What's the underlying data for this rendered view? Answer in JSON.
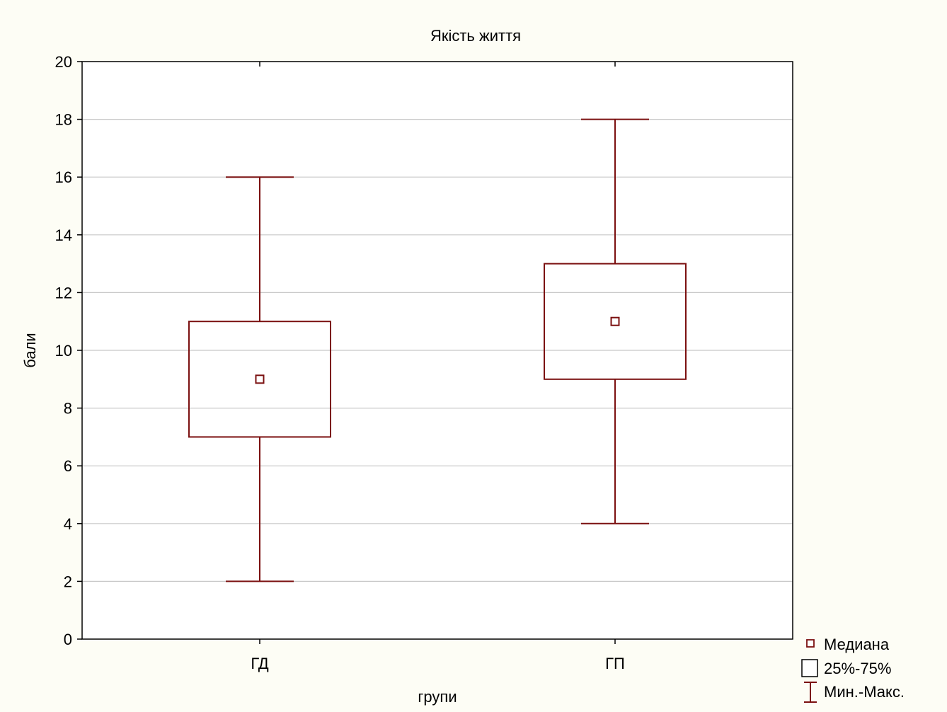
{
  "chart_data": {
    "type": "boxplot",
    "title": "Якість життя",
    "xlabel": "групи",
    "ylabel": "бали",
    "ylim": [
      0,
      20
    ],
    "yticks": [
      "0",
      "2",
      "4",
      "6",
      "8",
      "10",
      "12",
      "14",
      "16",
      "18",
      "20"
    ],
    "grid": true,
    "categories": [
      "ГД",
      "ГП"
    ],
    "boxes": [
      {
        "category": "ГД",
        "min": 2,
        "q1": 7,
        "median": 9,
        "q3": 11,
        "max": 16
      },
      {
        "category": "ГП",
        "min": 4,
        "q1": 9,
        "median": 11,
        "q3": 13,
        "max": 18
      }
    ],
    "legend": {
      "placement": "bottom-right",
      "items": [
        "Медиана",
        "25%-75%",
        "Мин.-Макс."
      ]
    },
    "colors": {
      "series": "#7b1010",
      "grid": "#c8c8c8",
      "background": "#fdfdf5",
      "plot_background": "#ffffff"
    }
  }
}
